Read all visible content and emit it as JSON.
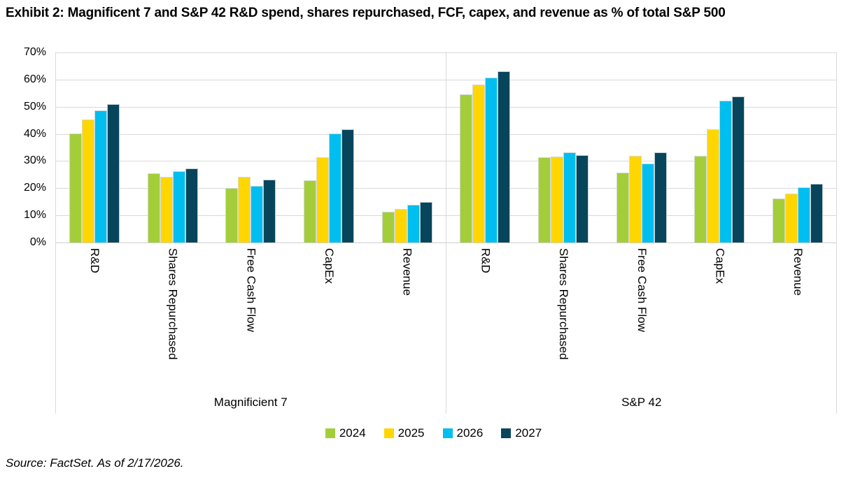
{
  "title": "Exhibit 2: Magnificent 7 and S&P 42 R&D spend, shares repurchased, FCF, capex, and revenue as % of total S&P 500",
  "source": "Source: FactSet. As of 2/17/2026.",
  "colors": {
    "s2024": "#A3CE3A",
    "s2025": "#FFD600",
    "s2026": "#00BEF0",
    "s2027": "#07455C",
    "gridline": "#D9D9D9"
  },
  "legend": [
    {
      "label": "2024",
      "color": "#A3CE3A"
    },
    {
      "label": "2025",
      "color": "#FFD600"
    },
    {
      "label": "2026",
      "color": "#00BEF0"
    },
    {
      "label": "2027",
      "color": "#07455C"
    }
  ],
  "chart_data": {
    "type": "bar",
    "title": "Exhibit 2: Magnificent 7 and S&P 42 R&D spend, shares repurchased, FCF, capex, and revenue as % of total S&P 500",
    "ylabel": "% of total S&P 500",
    "ylim": [
      0,
      70
    ],
    "ytick_labels": [
      "70%",
      "60%",
      "50%",
      "40%",
      "30%",
      "20%",
      "10%",
      "0%"
    ],
    "grid": "horizontal",
    "legend_position": "bottom",
    "series_names": [
      "2024",
      "2025",
      "2026",
      "2027"
    ],
    "groups": [
      {
        "label": "Magnificient 7",
        "categories": [
          "R&D",
          "Shares Repurchased",
          "Free Cash Flow",
          "CapEx",
          "Revenue"
        ],
        "series": [
          {
            "name": "2024",
            "values": [
              40.2,
              25.5,
              20.2,
              23.0,
              11.4
            ]
          },
          {
            "name": "2025",
            "values": [
              45.3,
              24.1,
              24.2,
              31.3,
              12.4
            ]
          },
          {
            "name": "2026",
            "values": [
              48.6,
              26.3,
              20.9,
              40.2,
              13.9
            ]
          },
          {
            "name": "2027",
            "values": [
              51.0,
              27.2,
              23.3,
              41.7,
              15.0
            ]
          }
        ]
      },
      {
        "label": "S&P 42",
        "categories": [
          "R&D",
          "Shares Repurchased",
          "Free Cash Flow",
          "CapEx",
          "Revenue"
        ],
        "series": [
          {
            "name": "2024",
            "values": [
              54.5,
              31.3,
              25.7,
              32.0,
              16.3
            ]
          },
          {
            "name": "2025",
            "values": [
              58.3,
              31.6,
              31.8,
              41.6,
              18.1
            ]
          },
          {
            "name": "2026",
            "values": [
              60.7,
              33.1,
              29.0,
              52.3,
              20.3
            ]
          },
          {
            "name": "2027",
            "values": [
              63.1,
              32.2,
              33.1,
              53.9,
              21.7
            ]
          }
        ]
      }
    ]
  }
}
